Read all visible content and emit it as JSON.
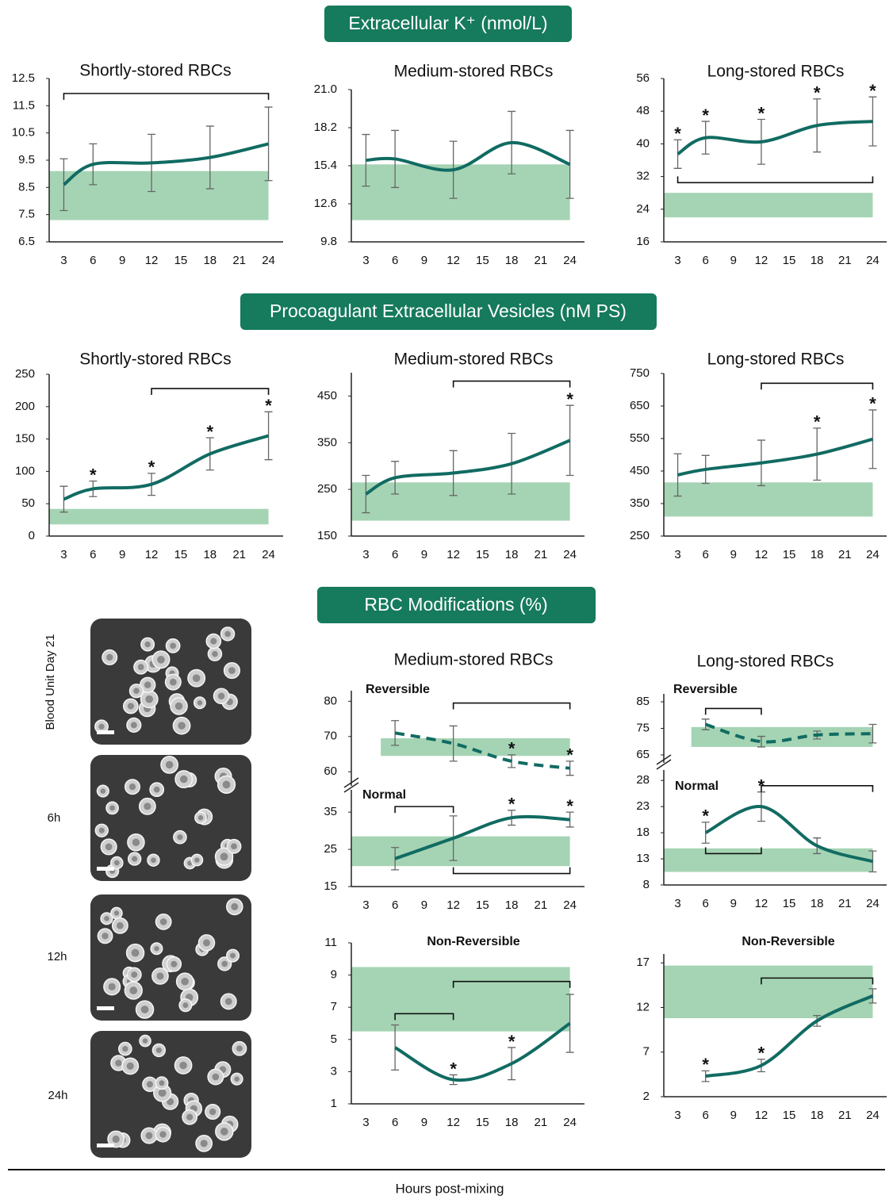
{
  "sections": [
    "Extracellular K⁺ (nmol/L)",
    "Procoagulant Extracellular Vesicles (nM PS)",
    "RBC Modifications (%)"
  ],
  "micrographs": [
    "Blood Unit Day 21",
    "6h",
    "12h",
    "24h"
  ],
  "x_label": "Hours post-mixing",
  "chart_data": [
    {
      "type": "line",
      "title": "Shortly-stored RBCs",
      "xlim": [
        1.5,
        25.5
      ],
      "xticks": [
        3,
        6,
        9,
        12,
        15,
        18,
        21,
        24
      ],
      "ylim": [
        6.5,
        12.5
      ],
      "yticks": [
        6.5,
        7.5,
        8.5,
        9.5,
        10.5,
        11.5,
        12.5
      ],
      "x": [
        3,
        6,
        12,
        18,
        24
      ],
      "values": [
        8.6,
        9.35,
        9.4,
        9.6,
        10.1
      ],
      "errors": [
        0.95,
        0.75,
        1.05,
        1.15,
        1.35
      ],
      "color": "#116b62",
      "line_style": "solid",
      "reference_range": {
        "low": 7.3,
        "high": 9.1,
        "color": "#a5d4b4"
      },
      "brackets": [
        {
          "x": [
            3,
            24
          ],
          "y": 11.95,
          "direction": "down"
        }
      ],
      "annotations": []
    },
    {
      "type": "line",
      "title": "Medium-stored RBCs",
      "xlim": [
        1.5,
        25.5
      ],
      "xticks": [
        3,
        6,
        9,
        12,
        15,
        18,
        21,
        24
      ],
      "ylim": [
        9.8,
        21
      ],
      "yticks": [
        9.8,
        12.6,
        15.4,
        18.2,
        {
          "value": 21,
          "label": "21.0"
        }
      ],
      "x": [
        3,
        6,
        12,
        18,
        24
      ],
      "values": [
        15.8,
        15.9,
        15.1,
        17.1,
        15.5
      ],
      "errors": [
        1.9,
        2.1,
        2.1,
        2.3,
        2.5
      ],
      "color": "#116b62",
      "line_style": "solid",
      "reference_range": {
        "low": 11.4,
        "high": 15.5,
        "color": "#a5d4b4"
      },
      "brackets": [],
      "annotations": []
    },
    {
      "type": "line",
      "title": "Long-stored RBCs",
      "xlim": [
        1.5,
        25.5
      ],
      "xticks": [
        3,
        6,
        9,
        12,
        15,
        18,
        21,
        24
      ],
      "ylim": [
        16,
        56
      ],
      "yticks": [
        16,
        24,
        32,
        40,
        48,
        56
      ],
      "x": [
        3,
        6,
        12,
        18,
        24
      ],
      "values": [
        37.5,
        41.5,
        40.5,
        44.5,
        45.5
      ],
      "errors": [
        3.5,
        4,
        5.5,
        6.5,
        6
      ],
      "color": "#116b62",
      "line_style": "solid",
      "reference_range": {
        "low": 22,
        "high": 28,
        "color": "#a5d4b4"
      },
      "brackets": [
        {
          "x": [
            3,
            24
          ],
          "y": 30.5,
          "direction": "up"
        }
      ],
      "annotations": [
        {
          "x": 3,
          "text": "*"
        },
        {
          "x": 6,
          "text": "*"
        },
        {
          "x": 12,
          "text": "*"
        },
        {
          "x": 18,
          "text": "*"
        },
        {
          "x": 24,
          "text": "*"
        }
      ]
    },
    {
      "type": "line",
      "title": "Shortly-stored RBCs",
      "xlim": [
        1.5,
        25.5
      ],
      "xticks": [
        3,
        6,
        9,
        12,
        15,
        18,
        21,
        24
      ],
      "ylim": [
        0,
        250
      ],
      "yticks": [
        0,
        50,
        100,
        150,
        200,
        250
      ],
      "x": [
        3,
        6,
        12,
        18,
        24
      ],
      "values": [
        57,
        73,
        80,
        127,
        155
      ],
      "errors": [
        20,
        12,
        17,
        25,
        37
      ],
      "color": "#116b62",
      "line_style": "solid",
      "reference_range": {
        "low": 18,
        "high": 42,
        "color": "#a5d4b4"
      },
      "brackets": [
        {
          "x": [
            12,
            24
          ],
          "y": 228,
          "direction": "down"
        }
      ],
      "annotations": [
        {
          "x": 6,
          "text": "*"
        },
        {
          "x": 12,
          "text": "*"
        },
        {
          "x": 18,
          "text": "*"
        },
        {
          "x": 24,
          "text": "*"
        }
      ]
    },
    {
      "type": "line",
      "title": "Medium-stored RBCs",
      "xlim": [
        1.5,
        25.5
      ],
      "xticks": [
        3,
        6,
        9,
        12,
        15,
        18,
        21,
        24
      ],
      "ylim": [
        150,
        500
      ],
      "yticks": [
        150,
        250,
        350,
        450
      ],
      "x": [
        3,
        6,
        12,
        18,
        24
      ],
      "values": [
        240,
        275,
        285,
        305,
        355
      ],
      "errors": [
        40,
        35,
        48,
        65,
        75
      ],
      "color": "#116b62",
      "line_style": "solid",
      "reference_range": {
        "low": 183,
        "high": 265,
        "color": "#a5d4b4"
      },
      "brackets": [
        {
          "x": [
            12,
            24
          ],
          "y": 482,
          "direction": "down"
        }
      ],
      "annotations": [
        {
          "x": 24,
          "text": "*"
        }
      ]
    },
    {
      "type": "line",
      "title": "Long-stored RBCs",
      "xlim": [
        1.5,
        25.5
      ],
      "xticks": [
        3,
        6,
        9,
        12,
        15,
        18,
        21,
        24
      ],
      "ylim": [
        250,
        750
      ],
      "yticks": [
        250,
        350,
        450,
        550,
        650,
        750
      ],
      "x": [
        3,
        6,
        12,
        18,
        24
      ],
      "values": [
        438,
        455,
        475,
        502,
        548
      ],
      "errors": [
        65,
        43,
        70,
        80,
        90
      ],
      "color": "#116b62",
      "line_style": "solid",
      "reference_range": {
        "low": 310,
        "high": 415,
        "color": "#a5d4b4"
      },
      "brackets": [
        {
          "x": [
            12,
            24
          ],
          "y": 720,
          "direction": "down"
        }
      ],
      "annotations": [
        {
          "x": 18,
          "text": "*"
        },
        {
          "x": 24,
          "text": "*"
        }
      ]
    },
    {
      "type": "line",
      "title": "Medium-stored RBCs",
      "subtitle": "Reversible",
      "xlim": [
        1.5,
        25.5
      ],
      "ylim": [
        56,
        83
      ],
      "yticks": [
        60,
        70,
        80
      ],
      "x": [
        6,
        12,
        18,
        24
      ],
      "values": [
        71,
        68,
        63,
        61
      ],
      "errors": [
        3.5,
        5,
        1.8,
        2
      ],
      "color": "#116b62",
      "line_style": "dashed",
      "reference_range": {
        "low": 64.5,
        "high": 69.5,
        "color": "#a5d4b4"
      },
      "brackets": [
        {
          "x": [
            12,
            24
          ],
          "y": 79.5,
          "direction": "down"
        }
      ],
      "annotations": [
        {
          "x": 18,
          "text": "*"
        },
        {
          "x": 24,
          "text": "*"
        }
      ]
    },
    {
      "type": "line",
      "subtitle": "Normal",
      "xlim": [
        1.5,
        25.5
      ],
      "xticks": [
        3,
        6,
        9,
        12,
        15,
        18,
        21,
        24
      ],
      "ylim": [
        15,
        41
      ],
      "yticks": [
        15,
        25,
        35
      ],
      "x": [
        6,
        12,
        18,
        24
      ],
      "values": [
        22.5,
        28,
        33.5,
        33
      ],
      "errors": [
        3,
        6,
        2,
        2
      ],
      "color": "#116b62",
      "line_style": "solid",
      "reference_range": {
        "low": 20.5,
        "high": 28.5,
        "color": "#a5d4b4"
      },
      "brackets": [
        {
          "x": [
            6,
            12
          ],
          "y": 36.5,
          "direction": "down"
        },
        {
          "x": [
            12,
            24
          ],
          "y": 18.5,
          "direction": "up"
        }
      ],
      "annotations": [
        {
          "x": 18,
          "text": "*"
        },
        {
          "x": 24,
          "text": "*"
        }
      ]
    },
    {
      "type": "line",
      "subtitle": "Non-Reversible",
      "xlim": [
        1.5,
        25.5
      ],
      "xticks": [
        3,
        6,
        9,
        12,
        15,
        18,
        21,
        24
      ],
      "ylim": [
        1,
        11
      ],
      "yticks": [
        1,
        3,
        5,
        7,
        9,
        11
      ],
      "x": [
        6,
        12,
        18,
        24
      ],
      "values": [
        4.5,
        2.5,
        3.5,
        6
      ],
      "errors": [
        1.4,
        0.3,
        1,
        1.8
      ],
      "color": "#116b62",
      "line_style": "solid",
      "reference_range": {
        "low": 5.5,
        "high": 9.5,
        "color": "#a5d4b4"
      },
      "brackets": [
        {
          "x": [
            6,
            12
          ],
          "y": 6.6,
          "direction": "down"
        },
        {
          "x": [
            12,
            24
          ],
          "y": 8.6,
          "direction": "down"
        }
      ],
      "annotations": [
        {
          "x": 12,
          "text": "*"
        },
        {
          "x": 18,
          "text": "*"
        }
      ]
    },
    {
      "type": "line",
      "title": "Long-stored RBCs",
      "subtitle": "Reversible",
      "xlim": [
        1.5,
        25.5
      ],
      "ylim": [
        62,
        88
      ],
      "yticks": [
        65,
        75,
        85
      ],
      "x": [
        6,
        12,
        18,
        24
      ],
      "values": [
        76.5,
        70,
        72.5,
        73
      ],
      "errors": [
        2,
        2,
        1.5,
        3.5
      ],
      "color": "#116b62",
      "line_style": "dashed",
      "reference_range": {
        "low": 68,
        "high": 75.5,
        "color": "#a5d4b4"
      },
      "brackets": [
        {
          "x": [
            6,
            12
          ],
          "y": 82.5,
          "direction": "down"
        }
      ],
      "annotations": []
    },
    {
      "type": "line",
      "subtitle": "Normal",
      "xlim": [
        1.5,
        25.5
      ],
      "xticks": [
        3,
        6,
        9,
        12,
        15,
        18,
        21,
        24
      ],
      "ylim": [
        8,
        30
      ],
      "yticks": [
        8,
        13,
        18,
        23,
        28
      ],
      "x": [
        6,
        12,
        18,
        24
      ],
      "values": [
        18,
        23,
        15.5,
        12.5
      ],
      "errors": [
        2,
        2.8,
        1.5,
        2
      ],
      "color": "#116b62",
      "line_style": "solid",
      "reference_range": {
        "low": 10.5,
        "high": 15,
        "color": "#a5d4b4"
      },
      "brackets": [
        {
          "x": [
            12,
            24
          ],
          "y": 27,
          "direction": "down"
        },
        {
          "x": [
            6,
            12
          ],
          "y": 14,
          "direction": "up"
        }
      ],
      "annotations": [
        {
          "x": 6,
          "text": "*"
        },
        {
          "x": 12,
          "text": "*"
        }
      ]
    },
    {
      "type": "line",
      "subtitle": "Non-Reversible",
      "xlim": [
        1.5,
        25.5
      ],
      "xticks": [
        3,
        6,
        9,
        12,
        15,
        18,
        21,
        24
      ],
      "ylim": [
        2,
        18
      ],
      "yticks": [
        2,
        7,
        12,
        17
      ],
      "x": [
        6,
        12,
        18,
        24
      ],
      "values": [
        4.3,
        5.5,
        10.5,
        13.3
      ],
      "errors": [
        0.6,
        0.7,
        0.6,
        0.8
      ],
      "color": "#116b62",
      "line_style": "solid",
      "reference_range": {
        "low": 10.8,
        "high": 16.7,
        "color": "#a5d4b4"
      },
      "brackets": [
        {
          "x": [
            12,
            24
          ],
          "y": 15.3,
          "direction": "down"
        }
      ],
      "annotations": [
        {
          "x": 6,
          "text": "*"
        },
        {
          "x": 12,
          "text": "*"
        }
      ]
    }
  ]
}
